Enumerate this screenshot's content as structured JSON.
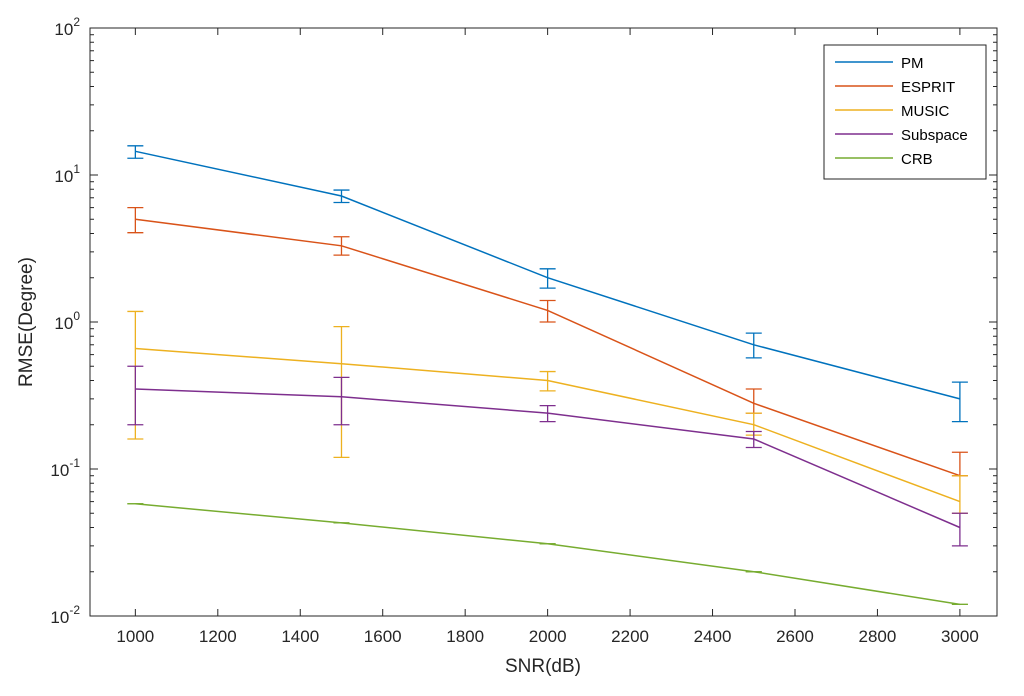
{
  "chart_data": {
    "type": "line",
    "xlabel": "SNR(dB)",
    "ylabel": "RMSE(Degree)",
    "yscale": "log",
    "xlim": [
      890,
      3090
    ],
    "ylim": [
      0.01,
      100
    ],
    "x": [
      1000,
      1500,
      2000,
      2500,
      3000
    ],
    "xticks": [
      1000,
      1200,
      1400,
      1600,
      1800,
      2000,
      2200,
      2400,
      2600,
      2800,
      3000
    ],
    "yticks": [
      {
        "value": 0.01,
        "base": "10",
        "exp": "-2"
      },
      {
        "value": 0.1,
        "base": "10",
        "exp": "-1"
      },
      {
        "value": 1,
        "base": "10",
        "exp": "0"
      },
      {
        "value": 10,
        "base": "10",
        "exp": "1"
      },
      {
        "value": 100,
        "base": "10",
        "exp": "2"
      }
    ],
    "grid": false,
    "legend_position": "top-right",
    "series": [
      {
        "name": "PM",
        "color": "#0072BD",
        "values": [
          14.5,
          7.2,
          2.0,
          0.7,
          0.3
        ],
        "err_low": [
          13.0,
          6.5,
          1.7,
          0.57,
          0.21
        ],
        "err_high": [
          15.8,
          7.9,
          2.3,
          0.84,
          0.39
        ]
      },
      {
        "name": "ESPRIT",
        "color": "#D95319",
        "values": [
          5.0,
          3.3,
          1.2,
          0.28,
          0.09
        ],
        "err_low": [
          4.05,
          2.85,
          1.0,
          0.24,
          0.09
        ],
        "err_high": [
          6.0,
          3.8,
          1.4,
          0.35,
          0.13
        ]
      },
      {
        "name": "MUSIC",
        "color": "#EDB120",
        "values": [
          0.66,
          0.52,
          0.4,
          0.2,
          0.06
        ],
        "err_low": [
          0.16,
          0.12,
          0.34,
          0.17,
          0.05
        ],
        "err_high": [
          1.18,
          0.93,
          0.46,
          0.24,
          0.09
        ]
      },
      {
        "name": "Subspace",
        "color": "#7E2F8E",
        "values": [
          0.35,
          0.31,
          0.24,
          0.16,
          0.04
        ],
        "err_low": [
          0.2,
          0.2,
          0.21,
          0.14,
          0.03
        ],
        "err_high": [
          0.5,
          0.42,
          0.27,
          0.18,
          0.05
        ]
      },
      {
        "name": "CRB",
        "color": "#77AC30",
        "values": [
          0.058,
          0.043,
          0.031,
          0.02,
          0.012
        ],
        "err_low": [
          0.058,
          0.043,
          0.031,
          0.02,
          0.012
        ],
        "err_high": [
          0.058,
          0.043,
          0.031,
          0.02,
          0.012
        ]
      }
    ]
  }
}
